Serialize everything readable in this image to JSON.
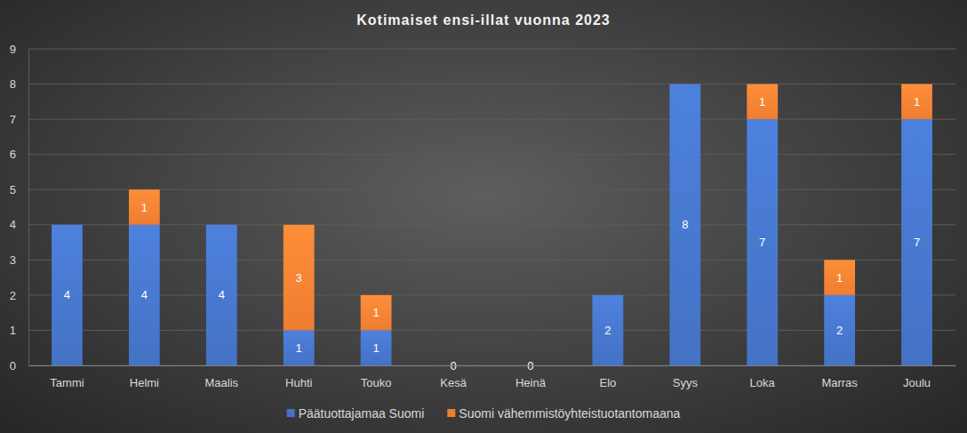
{
  "chart_data": {
    "type": "bar",
    "title": "Kotimaiset ensi-illat vuonna 2023",
    "categories": [
      "Tammi",
      "Helmi",
      "Maalis",
      "Huhti",
      "Touko",
      "Kesä",
      "Heinä",
      "Elo",
      "Syys",
      "Loka",
      "Marras",
      "Joulu"
    ],
    "series": [
      {
        "name": "Päätuottajamaa Suomi",
        "color": "#4472c4",
        "values": [
          4,
          4,
          4,
          1,
          1,
          0,
          0,
          2,
          8,
          7,
          2,
          7
        ]
      },
      {
        "name": "Suomi vähemmistöyhteistuotantomaana",
        "color": "#ed7d31",
        "values": [
          null,
          1,
          null,
          3,
          1,
          null,
          null,
          null,
          null,
          1,
          1,
          1
        ]
      }
    ],
    "ylim": [
      0,
      9
    ],
    "yticks": [
      0,
      1,
      2,
      3,
      4,
      5,
      6,
      7,
      8,
      9
    ],
    "stacked": true,
    "grid": true,
    "legend": "bottom",
    "data_labels": true
  }
}
